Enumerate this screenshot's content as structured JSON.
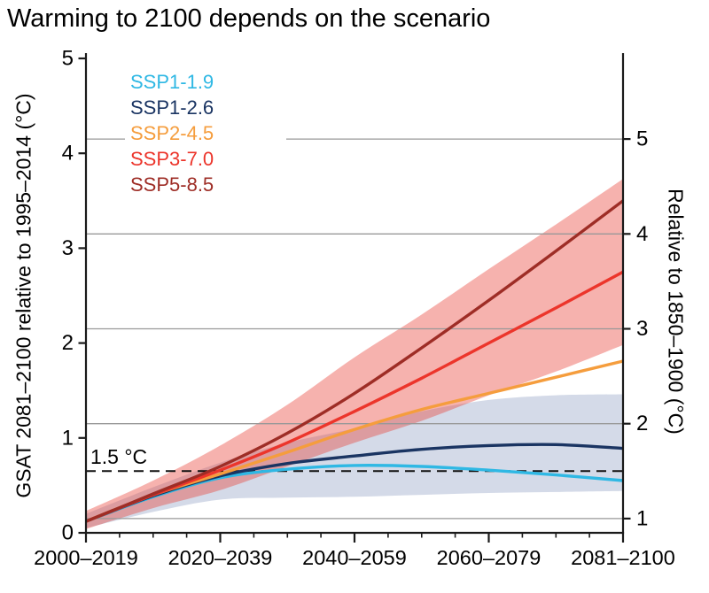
{
  "page": {
    "background": "#ffffff"
  },
  "colors": {
    "axis": "#1a1a1a",
    "grid": "#999999",
    "threshold": "#111111",
    "text": "#000000",
    "background": "#ffffff"
  },
  "chart_data": {
    "type": "line",
    "title": "Warming to 2100 depends on the scenario",
    "x_categories": [
      "2000–2019",
      "2020–2039",
      "2040–2059",
      "2060–2079",
      "2081–2100"
    ],
    "x_minor_ticks_per_interval": 3,
    "axes": {
      "left": {
        "label": "GSAT 2081–2100 relative to 1995–2014 (°C)",
        "ticks": [
          0,
          1,
          2,
          3,
          4,
          5
        ],
        "range": [
          0,
          5
        ]
      },
      "right": {
        "label": "Relative to 1850–1900 (°C)",
        "ticks": [
          1,
          2,
          3,
          4,
          5
        ],
        "offset_from_left": 0.85
      }
    },
    "grid": {
      "at_right_ticks": true,
      "color": "#999999"
    },
    "threshold": {
      "label": "1.5 °C",
      "left_value": 0.65,
      "right_value": 1.5,
      "style": "dashed",
      "color": "#111111"
    },
    "t": [
      0,
      0.125,
      0.25,
      0.375,
      0.5,
      0.625,
      0.75,
      0.875,
      1
    ],
    "series": [
      {
        "name": "SSP1-1.9",
        "color": "#2fb8e4",
        "values": [
          0.12,
          0.38,
          0.58,
          0.67,
          0.71,
          0.7,
          0.66,
          0.61,
          0.55
        ]
      },
      {
        "name": "SSP1-2.6",
        "color": "#1a3462",
        "values": [
          0.12,
          0.39,
          0.6,
          0.73,
          0.81,
          0.88,
          0.92,
          0.93,
          0.89
        ]
      },
      {
        "name": "SSP2-4.5",
        "color": "#f59d3d",
        "values": [
          0.12,
          0.4,
          0.62,
          0.85,
          1.09,
          1.3,
          1.47,
          1.64,
          1.81
        ]
      },
      {
        "name": "SSP3-7.0",
        "color": "#ec352b",
        "values": [
          0.12,
          0.4,
          0.66,
          0.95,
          1.28,
          1.63,
          2.0,
          2.37,
          2.75
        ]
      },
      {
        "name": "SSP5-8.5",
        "color": "#9e2d26",
        "values": [
          0.12,
          0.41,
          0.7,
          1.05,
          1.47,
          1.95,
          2.45,
          2.97,
          3.5
        ]
      }
    ],
    "bands": [
      {
        "name": "SSP1-2.6 range",
        "color": "rgba(96,120,170,0.27)",
        "top": [
          0.2,
          0.48,
          0.74,
          0.95,
          1.1,
          1.28,
          1.4,
          1.45,
          1.46
        ],
        "bottom": [
          0.05,
          0.22,
          0.35,
          0.37,
          0.38,
          0.4,
          0.42,
          0.43,
          0.44
        ]
      },
      {
        "name": "SSP3-7.0 range",
        "color": "rgba(232,62,52,0.40)",
        "top": [
          0.23,
          0.55,
          0.92,
          1.35,
          1.85,
          2.3,
          2.78,
          3.25,
          3.73
        ],
        "bottom": [
          0.04,
          0.26,
          0.45,
          0.7,
          0.95,
          1.18,
          1.45,
          1.7,
          1.98
        ]
      }
    ],
    "legend": {
      "position": "top-left",
      "entries": [
        {
          "label": "SSP1-1.9",
          "color": "#2fb8e4"
        },
        {
          "label": "SSP1-2.6",
          "color": "#1a3462"
        },
        {
          "label": "SSP2-4.5",
          "color": "#f59d3d"
        },
        {
          "label": "SSP3-7.0",
          "color": "#ec352b"
        },
        {
          "label": "SSP5-8.5",
          "color": "#9e2d26"
        }
      ]
    }
  }
}
